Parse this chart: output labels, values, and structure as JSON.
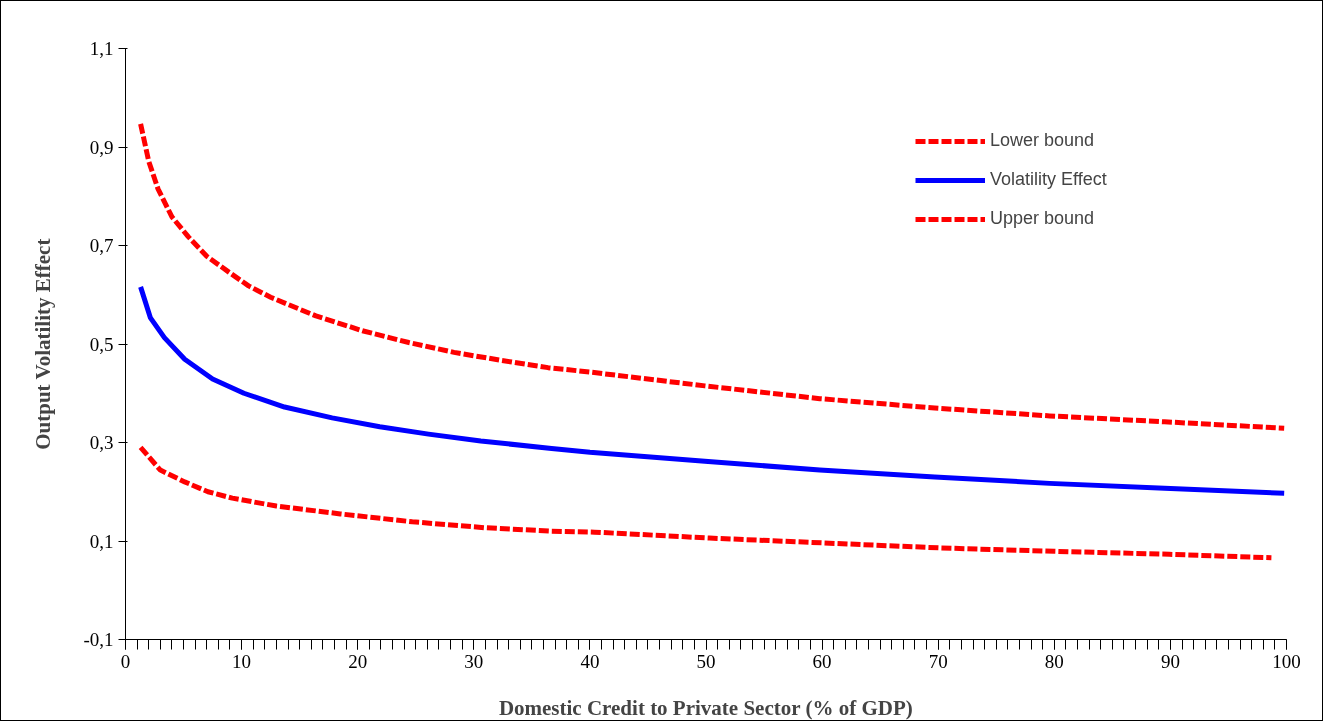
{
  "chart_data": {
    "type": "line",
    "xlabel": "Domestic Credit to Private Sector (% of GDP)",
    "ylabel": "Output Volatility Effect",
    "xlim": [
      0,
      100
    ],
    "ylim": [
      -0.1,
      1.1
    ],
    "xticks": [
      0,
      10,
      20,
      30,
      40,
      50,
      60,
      70,
      80,
      90,
      100
    ],
    "yticks": [
      {
        "value": -0.1,
        "label": "-0,1"
      },
      {
        "value": 0.1,
        "label": "0,1"
      },
      {
        "value": 0.3,
        "label": "0,3"
      },
      {
        "value": 0.5,
        "label": "0,5"
      },
      {
        "value": 0.7,
        "label": "0,7"
      },
      {
        "value": 0.9,
        "label": "0,9"
      },
      {
        "value": 1.1,
        "label": "1,1"
      }
    ],
    "grid": false,
    "legend": "top right",
    "series": [
      {
        "name": "Lower bound",
        "color": "#ff0000",
        "line_style": "dashed",
        "x": [
          1.3,
          3.0,
          5.1,
          7.1,
          9.2,
          13.0,
          18.5,
          24.7,
          30.9,
          36.7,
          40.4,
          50.3,
          60.2,
          70.1,
          80.0,
          89.9,
          98.7
        ],
        "values": [
          0.29,
          0.244,
          0.22,
          0.2,
          0.187,
          0.171,
          0.155,
          0.139,
          0.127,
          0.12,
          0.118,
          0.106,
          0.096,
          0.086,
          0.079,
          0.073,
          0.066
        ]
      },
      {
        "name": "Volatility Effect",
        "color": "#0000ff",
        "line_style": "solid",
        "x": [
          1.3,
          2.15,
          3.35,
          5.1,
          7.5,
          10.2,
          13.7,
          17.8,
          21.9,
          26.1,
          30.6,
          36.7,
          40,
          49.9,
          59.8,
          69.7,
          79.6,
          89.5,
          99.8
        ],
        "values": [
          0.616,
          0.553,
          0.513,
          0.469,
          0.429,
          0.4,
          0.372,
          0.35,
          0.332,
          0.317,
          0.303,
          0.288,
          0.28,
          0.262,
          0.244,
          0.23,
          0.217,
          0.207,
          0.197
        ]
      },
      {
        "name": "Upper bound",
        "color": "#ff0000",
        "line_style": "dashed",
        "x": [
          1.3,
          2.0,
          2.8,
          4.0,
          5.4,
          7.0,
          8.9,
          10.6,
          12.5,
          16.4,
          20.4,
          24.4,
          28.3,
          32.3,
          36.4,
          40.0,
          49.9,
          59.8,
          69.7,
          79.6,
          89.5,
          99.8
        ],
        "values": [
          0.947,
          0.871,
          0.815,
          0.758,
          0.718,
          0.678,
          0.646,
          0.618,
          0.595,
          0.557,
          0.527,
          0.503,
          0.483,
          0.467,
          0.452,
          0.443,
          0.415,
          0.389,
          0.37,
          0.354,
          0.342,
          0.329
        ]
      }
    ]
  }
}
